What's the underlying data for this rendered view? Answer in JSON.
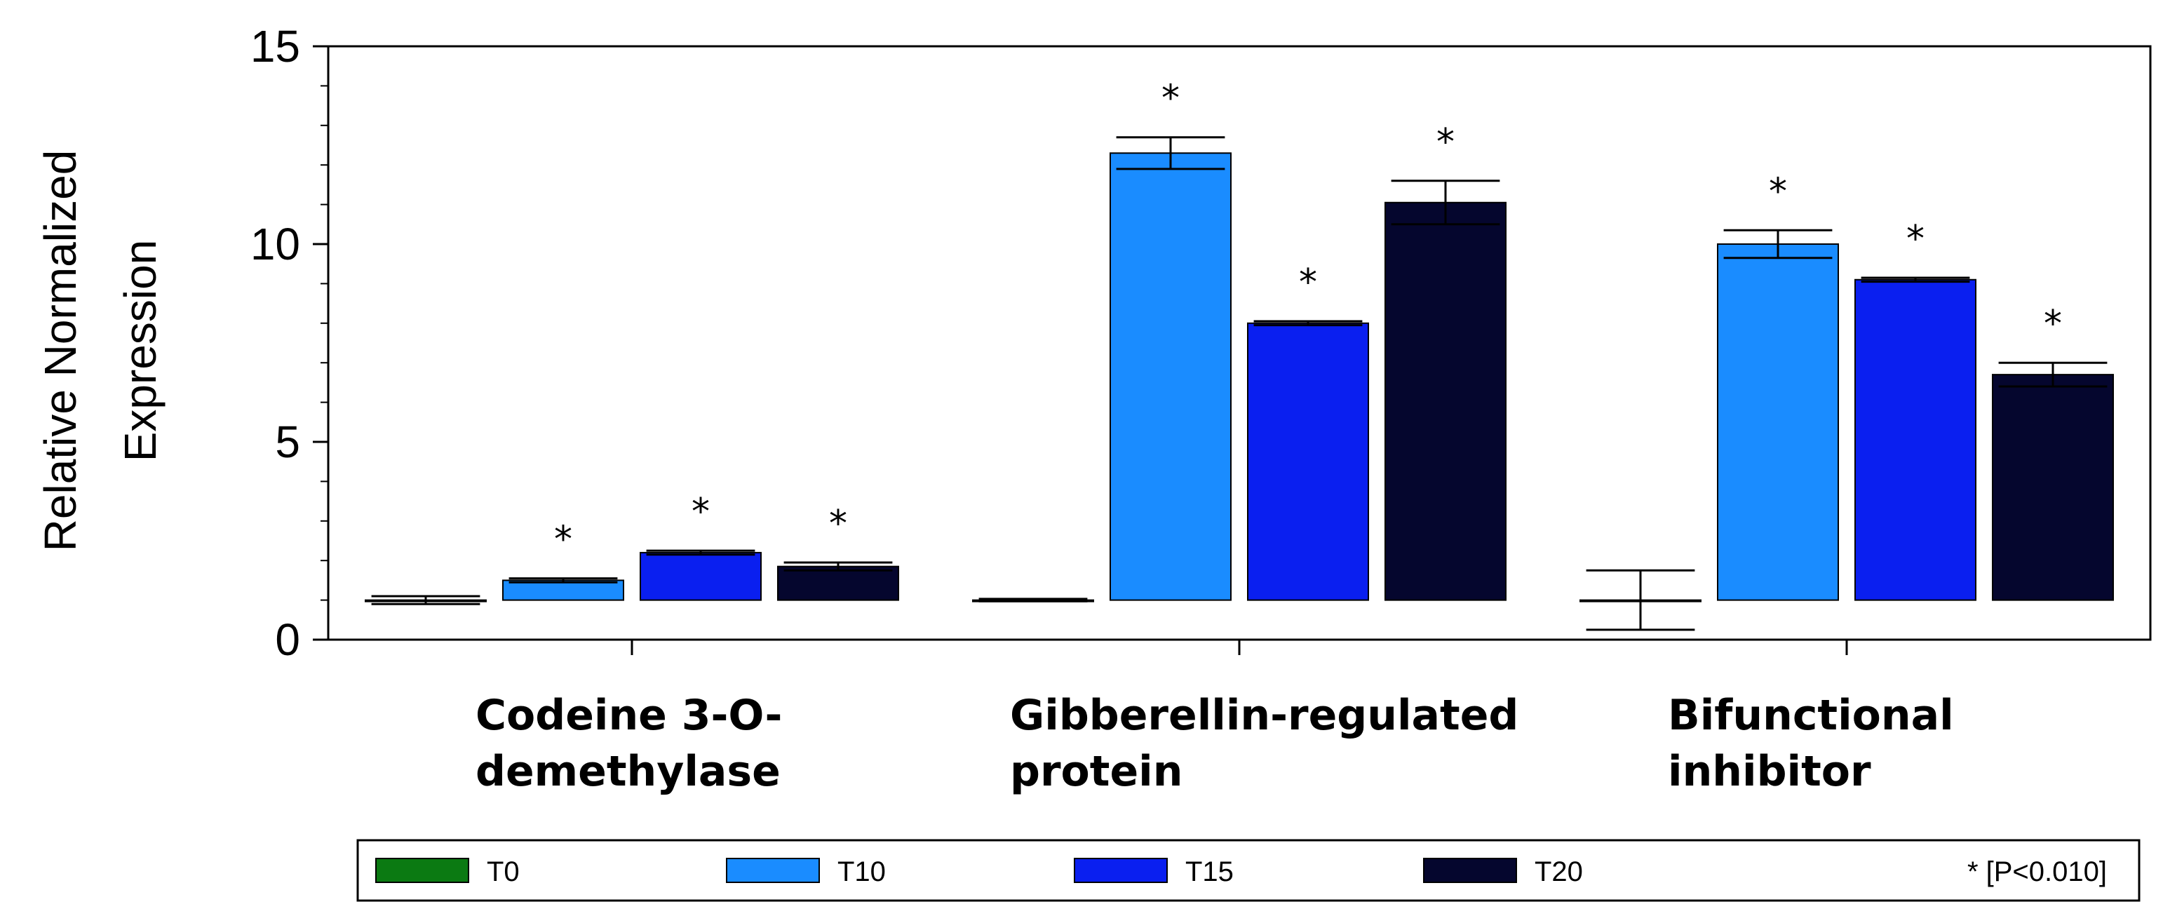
{
  "chart_data": {
    "type": "bar",
    "ylabel": "Relative Normalized Expression",
    "ylabel_lines": [
      "Relative Normalized",
      "Expression"
    ],
    "ylim": [
      0,
      15
    ],
    "yticks": [
      "0",
      "5",
      "10",
      "15"
    ],
    "baseline": 1,
    "categories": [
      "Codeine 3-O-demethylase",
      "Gibberellin-regulated protein",
      "Bifunctional inhibitor"
    ],
    "category_lines": [
      [
        "Codeine 3-O-",
        "demethylase"
      ],
      [
        "Gibberellin-regulated",
        "protein"
      ],
      [
        "Bifunctional",
        "inhibitor"
      ]
    ],
    "series": [
      {
        "name": "T0",
        "color": "#0b7a12",
        "values": [
          1.0,
          1.0,
          1.0
        ],
        "errors": [
          0.1,
          0.03,
          0.75
        ],
        "significant": [
          false,
          false,
          false
        ]
      },
      {
        "name": "T10",
        "color": "#1a8cff",
        "values": [
          1.5,
          12.3,
          10.0
        ],
        "errors": [
          0.05,
          0.4,
          0.35
        ],
        "significant": [
          true,
          true,
          true
        ]
      },
      {
        "name": "T15",
        "color": "#0a1ff0",
        "values": [
          2.2,
          8.0,
          9.1
        ],
        "errors": [
          0.05,
          0.05,
          0.05
        ],
        "significant": [
          true,
          true,
          true
        ]
      },
      {
        "name": "T20",
        "color": "#05062e",
        "values": [
          1.85,
          11.05,
          6.7
        ],
        "errors": [
          0.1,
          0.55,
          0.3
        ],
        "significant": [
          true,
          true,
          true
        ]
      }
    ],
    "significance_marker": "*",
    "legend_note": "* [P<0.010]",
    "legend_position": "bottom",
    "grid": false
  }
}
